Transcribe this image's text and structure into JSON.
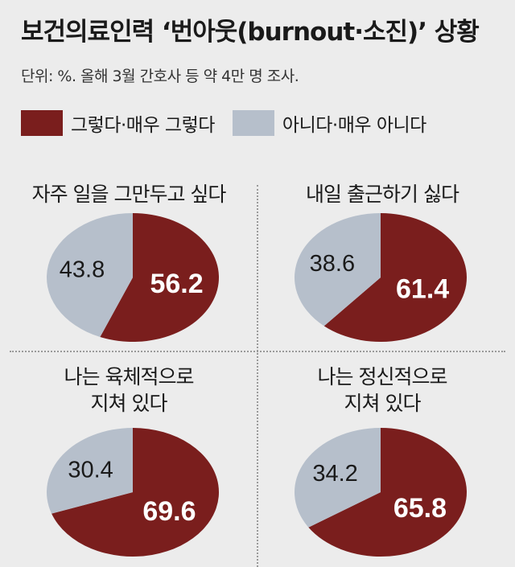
{
  "title": "보건의료인력 ‘번아웃(burnout·소진)’ 상황",
  "subtitle": "단위: %. 올해 3월 간호사 등 약 4만 명 조사.",
  "colors": {
    "yes": "#7a1e1d",
    "no": "#b6bfcb",
    "background": "#ececec"
  },
  "legend": [
    {
      "label": "그렇다·매우 그렇다",
      "color": "#7a1e1d"
    },
    {
      "label": "아니다·매우 아니다",
      "color": "#b6bfcb"
    }
  ],
  "chart_data": [
    {
      "type": "pie",
      "title": "자주 일을 그만두고 싶다",
      "slices": [
        {
          "label": "그렇다·매우 그렇다",
          "value": 56.2,
          "color": "#7a1e1d"
        },
        {
          "label": "아니다·매우 아니다",
          "value": 43.8,
          "color": "#b6bfcb"
        }
      ]
    },
    {
      "type": "pie",
      "title": "내일 출근하기 싫다",
      "slices": [
        {
          "label": "그렇다·매우 그렇다",
          "value": 61.4,
          "color": "#7a1e1d"
        },
        {
          "label": "아니다·매우 아니다",
          "value": 38.6,
          "color": "#b6bfcb"
        }
      ]
    },
    {
      "type": "pie",
      "title": "나는 육체적으로\n지쳐 있다",
      "slices": [
        {
          "label": "그렇다·매우 그렇다",
          "value": 69.6,
          "color": "#7a1e1d"
        },
        {
          "label": "아니다·매우 아니다",
          "value": 30.4,
          "color": "#b6bfcb"
        }
      ]
    },
    {
      "type": "pie",
      "title": "나는 정신적으로\n지쳐 있다",
      "slices": [
        {
          "label": "그렇다·매우 그렇다",
          "value": 65.8,
          "color": "#7a1e1d"
        },
        {
          "label": "아니다·매우 아니다",
          "value": 34.2,
          "color": "#b6bfcb"
        }
      ]
    }
  ]
}
